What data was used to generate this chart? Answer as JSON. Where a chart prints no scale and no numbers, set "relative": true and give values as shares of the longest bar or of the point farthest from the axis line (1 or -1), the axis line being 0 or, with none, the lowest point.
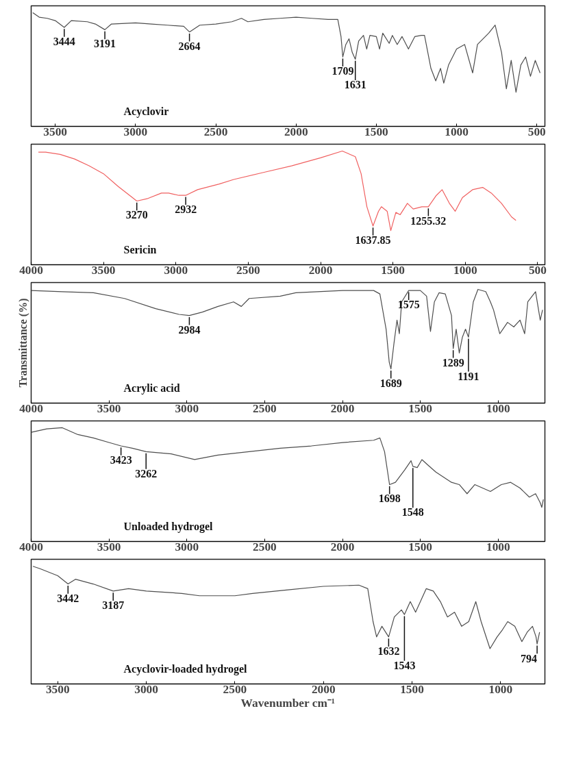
{
  "chart_data": [
    {
      "type": "line",
      "relative": true,
      "tick_labels": "x",
      "xlim": [
        3650,
        450
      ],
      "xticks": [
        3500,
        3000,
        2500,
        2000,
        1500,
        1000,
        500
      ],
      "series": [
        {
          "name": "Acyclovir",
          "color": "#4d4d4d",
          "x": [
            3640,
            3600,
            3550,
            3500,
            3444,
            3400,
            3300,
            3250,
            3191,
            3150,
            3000,
            2900,
            2800,
            2700,
            2664,
            2600,
            2500,
            2400,
            2340,
            2300,
            2200,
            2100,
            2000,
            1900,
            1800,
            1740,
            1720,
            1709,
            1690,
            1670,
            1650,
            1631,
            1610,
            1580,
            1560,
            1540,
            1500,
            1480,
            1460,
            1420,
            1400,
            1370,
            1340,
            1300,
            1260,
            1220,
            1200,
            1160,
            1130,
            1100,
            1080,
            1050,
            1000,
            950,
            900,
            870,
            800,
            760,
            720,
            690,
            660,
            630,
            600,
            570,
            540,
            510,
            480
          ],
          "values": [
            1.0,
            0.96,
            0.95,
            0.93,
            0.87,
            0.93,
            0.92,
            0.9,
            0.85,
            0.9,
            0.91,
            0.9,
            0.89,
            0.88,
            0.83,
            0.89,
            0.9,
            0.92,
            0.95,
            0.92,
            0.94,
            0.95,
            0.96,
            0.95,
            0.94,
            0.94,
            0.79,
            0.61,
            0.72,
            0.77,
            0.65,
            0.59,
            0.75,
            0.8,
            0.68,
            0.8,
            0.79,
            0.68,
            0.82,
            0.73,
            0.8,
            0.72,
            0.79,
            0.68,
            0.79,
            0.8,
            0.8,
            0.51,
            0.4,
            0.51,
            0.38,
            0.54,
            0.68,
            0.72,
            0.47,
            0.72,
            0.82,
            0.89,
            0.65,
            0.33,
            0.58,
            0.3,
            0.54,
            0.61,
            0.44,
            0.58,
            0.47
          ]
        }
      ],
      "annotations": [
        {
          "text": "3444",
          "x": 3444,
          "y": 0.87
        },
        {
          "text": "3191",
          "x": 3191,
          "y": 0.85
        },
        {
          "text": "2664",
          "x": 2664,
          "y": 0.83
        },
        {
          "text": "1709",
          "x": 1709,
          "y": 0.61
        },
        {
          "text": "1631",
          "x": 1631,
          "y": 0.59
        }
      ]
    },
    {
      "type": "line",
      "relative": true,
      "tick_labels": "x",
      "xlim": [
        4000,
        450
      ],
      "xticks": [
        4000,
        3500,
        3000,
        2500,
        2000,
        1500,
        1000,
        500
      ],
      "series": [
        {
          "name": "Sericin",
          "color": "#f06060",
          "x": [
            3950,
            3900,
            3800,
            3700,
            3600,
            3500,
            3400,
            3300,
            3270,
            3200,
            3100,
            3050,
            2980,
            2932,
            2850,
            2700,
            2600,
            2400,
            2200,
            2000,
            1850,
            1760,
            1720,
            1680,
            1637.85,
            1600,
            1580,
            1540,
            1515,
            1480,
            1450,
            1400,
            1360,
            1300,
            1255.32,
            1200,
            1160,
            1110,
            1070,
            1020,
            950,
            880,
            820,
            750,
            680,
            650
          ],
          "values": [
            0.99,
            0.99,
            0.97,
            0.93,
            0.87,
            0.8,
            0.69,
            0.59,
            0.56,
            0.58,
            0.63,
            0.63,
            0.61,
            0.61,
            0.66,
            0.71,
            0.75,
            0.81,
            0.87,
            0.94,
            1.0,
            0.95,
            0.8,
            0.51,
            0.34,
            0.47,
            0.51,
            0.47,
            0.3,
            0.46,
            0.44,
            0.54,
            0.49,
            0.51,
            0.51,
            0.61,
            0.66,
            0.54,
            0.47,
            0.59,
            0.66,
            0.68,
            0.63,
            0.54,
            0.42,
            0.39
          ]
        }
      ],
      "annotations": [
        {
          "text": "3270",
          "x": 3270,
          "y": 0.56
        },
        {
          "text": "2932",
          "x": 2932,
          "y": 0.61
        },
        {
          "text": "1637.85",
          "x": 1637.85,
          "y": 0.34
        },
        {
          "text": "1255.32",
          "x": 1255.32,
          "y": 0.51
        }
      ]
    },
    {
      "type": "line",
      "relative": true,
      "tick_labels": "x",
      "ylabel": "Transmittance (%)",
      "xlim": [
        4000,
        700
      ],
      "xticks": [
        4000,
        3500,
        3000,
        2500,
        2000,
        1500,
        1000
      ],
      "series": [
        {
          "name": "Acrylic acid",
          "color": "#4d4d4d",
          "x": [
            4000,
            3800,
            3600,
            3400,
            3200,
            3050,
            2984,
            2900,
            2800,
            2700,
            2650,
            2600,
            2400,
            2300,
            2000,
            1800,
            1760,
            1720,
            1700,
            1689,
            1670,
            1650,
            1635,
            1620,
            1575,
            1500,
            1460,
            1435,
            1410,
            1380,
            1340,
            1300,
            1289,
            1270,
            1250,
            1230,
            1210,
            1191,
            1160,
            1130,
            1080,
            1050,
            1030,
            990,
            970,
            940,
            900,
            860,
            830,
            810,
            760,
            730,
            715
          ],
          "values": [
            0.99,
            0.98,
            0.97,
            0.92,
            0.83,
            0.78,
            0.77,
            0.8,
            0.85,
            0.89,
            0.85,
            0.92,
            0.94,
            0.97,
            0.99,
            0.99,
            0.96,
            0.65,
            0.36,
            0.3,
            0.52,
            0.73,
            0.61,
            0.89,
            0.99,
            0.99,
            0.94,
            0.63,
            0.89,
            0.97,
            0.96,
            0.77,
            0.48,
            0.65,
            0.44,
            0.58,
            0.65,
            0.58,
            0.89,
            1.0,
            0.98,
            0.89,
            0.82,
            0.61,
            0.65,
            0.71,
            0.67,
            0.73,
            0.61,
            0.89,
            0.98,
            0.73,
            0.82
          ]
        }
      ],
      "annotations": [
        {
          "text": "2984",
          "x": 2984,
          "y": 0.77
        },
        {
          "text": "1575",
          "x": 1575,
          "y": 0.99
        },
        {
          "text": "1689",
          "x": 1689,
          "y": 0.3
        },
        {
          "text": "1289",
          "x": 1289,
          "y": 0.48
        },
        {
          "text": "1191",
          "x": 1191,
          "y": 0.58
        }
      ]
    },
    {
      "type": "line",
      "relative": true,
      "tick_labels": "x",
      "xlim": [
        4000,
        700
      ],
      "xticks": [
        4000,
        3500,
        3000,
        2500,
        2000,
        1500,
        1000
      ],
      "series": [
        {
          "name": "Unloaded hydrogel",
          "color": "#4d4d4d",
          "x": [
            4000,
            3900,
            3800,
            3700,
            3600,
            3500,
            3423,
            3350,
            3262,
            3100,
            2950,
            2800,
            2600,
            2400,
            2200,
            2000,
            1800,
            1760,
            1730,
            1698,
            1660,
            1600,
            1560,
            1548,
            1520,
            1490,
            1450,
            1400,
            1300,
            1250,
            1200,
            1150,
            1100,
            1050,
            980,
            920,
            860,
            800,
            760,
            730,
            720,
            710
          ],
          "values": [
            0.96,
            0.99,
            1.0,
            0.94,
            0.91,
            0.87,
            0.84,
            0.82,
            0.79,
            0.77,
            0.72,
            0.76,
            0.79,
            0.82,
            0.84,
            0.87,
            0.89,
            0.91,
            0.79,
            0.5,
            0.52,
            0.63,
            0.71,
            0.66,
            0.65,
            0.72,
            0.67,
            0.61,
            0.52,
            0.5,
            0.42,
            0.5,
            0.47,
            0.44,
            0.5,
            0.52,
            0.47,
            0.39,
            0.42,
            0.34,
            0.3,
            0.37
          ]
        }
      ],
      "annotations": [
        {
          "text": "3423",
          "x": 3423,
          "y": 0.84
        },
        {
          "text": "3262",
          "x": 3262,
          "y": 0.79
        },
        {
          "text": "1698",
          "x": 1698,
          "y": 0.5
        },
        {
          "text": "1548",
          "x": 1548,
          "y": 0.66
        }
      ]
    },
    {
      "type": "line",
      "relative": true,
      "tick_labels": "x",
      "xlabel": "Wavenumber cm⁻¹",
      "xlim": [
        3650,
        750
      ],
      "xticks": [
        3500,
        3000,
        2500,
        2000,
        1500,
        1000
      ],
      "series": [
        {
          "name": "Acyclovir-loaded hydrogel",
          "color": "#4d4d4d",
          "x": [
            3640,
            3600,
            3500,
            3442,
            3400,
            3300,
            3187,
            3100,
            3000,
            2800,
            2700,
            2500,
            2400,
            2200,
            2000,
            1800,
            1750,
            1720,
            1700,
            1670,
            1632,
            1600,
            1560,
            1543,
            1510,
            1480,
            1420,
            1380,
            1340,
            1300,
            1260,
            1220,
            1180,
            1140,
            1110,
            1060,
            1020,
            990,
            960,
            920,
            880,
            850,
            820,
            800,
            794,
            780
          ],
          "values": [
            1.0,
            0.98,
            0.92,
            0.85,
            0.89,
            0.85,
            0.79,
            0.81,
            0.79,
            0.77,
            0.75,
            0.75,
            0.77,
            0.8,
            0.83,
            0.84,
            0.81,
            0.53,
            0.4,
            0.49,
            0.4,
            0.57,
            0.63,
            0.59,
            0.7,
            0.61,
            0.81,
            0.79,
            0.7,
            0.57,
            0.61,
            0.49,
            0.53,
            0.7,
            0.53,
            0.3,
            0.4,
            0.46,
            0.53,
            0.49,
            0.36,
            0.44,
            0.49,
            0.4,
            0.34,
            0.44
          ]
        }
      ],
      "annotations": [
        {
          "text": "3442",
          "x": 3442,
          "y": 0.85
        },
        {
          "text": "3187",
          "x": 3187,
          "y": 0.79
        },
        {
          "text": "1632",
          "x": 1632,
          "y": 0.4
        },
        {
          "text": "1543",
          "x": 1543,
          "y": 0.59
        },
        {
          "text": "794",
          "x": 794,
          "y": 0.34
        }
      ]
    }
  ]
}
